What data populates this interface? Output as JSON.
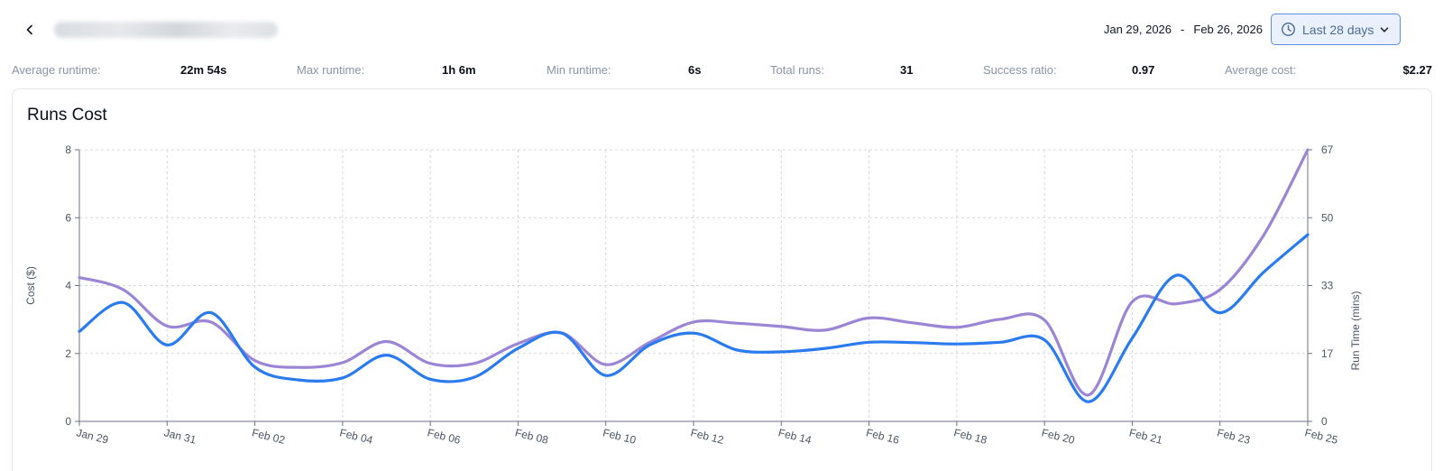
{
  "header": {
    "back_icon": "chevron-left-icon",
    "job_name": "",
    "date_start": "Jan 29, 2026",
    "date_separator": "-",
    "date_end": "Feb 26, 2026",
    "range_label": "Last 28 days",
    "range_icon": "clock-icon",
    "range_chevron": "chevron-down-icon",
    "accent_color": "#5b8de0"
  },
  "stats": [
    {
      "label": "Average runtime:",
      "value": "22m 54s"
    },
    {
      "label": "Max runtime:",
      "value": "1h 6m"
    },
    {
      "label": "Min runtime:",
      "value": "6s"
    },
    {
      "label": "Total runs:",
      "value": "31"
    },
    {
      "label": "Success ratio:",
      "value": "0.97"
    },
    {
      "label": "Average cost:",
      "value": "$2.27"
    }
  ],
  "card": {
    "title": "Runs Cost"
  },
  "chart_data": {
    "type": "line",
    "title": "Runs Cost",
    "ylabel": "Cost ($)",
    "y2label": "Run Time (mins)",
    "ylim": [
      0,
      8
    ],
    "y2lim": [
      0,
      67
    ],
    "yticks": [
      "0",
      "2",
      "4",
      "6",
      "8"
    ],
    "y2ticks": [
      "0",
      "17",
      "33",
      "50",
      "67"
    ],
    "x_tick_labels": [
      "Jan 29",
      "Jan 31",
      "Feb 02",
      "Feb 04",
      "Feb 06",
      "Feb 08",
      "Feb 10",
      "Feb 12",
      "Feb 14",
      "Feb 16",
      "Feb 18",
      "Feb 20",
      "Feb 21",
      "Feb 23",
      "Feb 25"
    ],
    "grid": true,
    "series": [
      {
        "axis": "left",
        "color": "#2a7bef",
        "values": [
          2.65,
          3.5,
          2.25,
          3.2,
          1.6,
          1.22,
          1.28,
          1.95,
          1.24,
          1.3,
          2.15,
          2.6,
          1.35,
          2.25,
          2.6,
          2.1,
          2.05,
          2.15,
          2.33,
          2.32,
          2.28,
          2.33,
          2.4,
          0.58,
          2.45,
          4.3,
          3.2,
          4.4,
          5.5
        ]
      },
      {
        "axis": "right",
        "color": "#9b86d6",
        "values": [
          35.5,
          32.5,
          23.5,
          24.5,
          15.0,
          13.3,
          14.5,
          19.7,
          14.3,
          14.3,
          19.2,
          21.8,
          14.0,
          19.5,
          24.5,
          24.2,
          23.4,
          22.5,
          25.5,
          24.3,
          23.2,
          25.2,
          25.0,
          6.5,
          29.5,
          29.0,
          32.5,
          46.0,
          67.0
        ]
      }
    ]
  }
}
